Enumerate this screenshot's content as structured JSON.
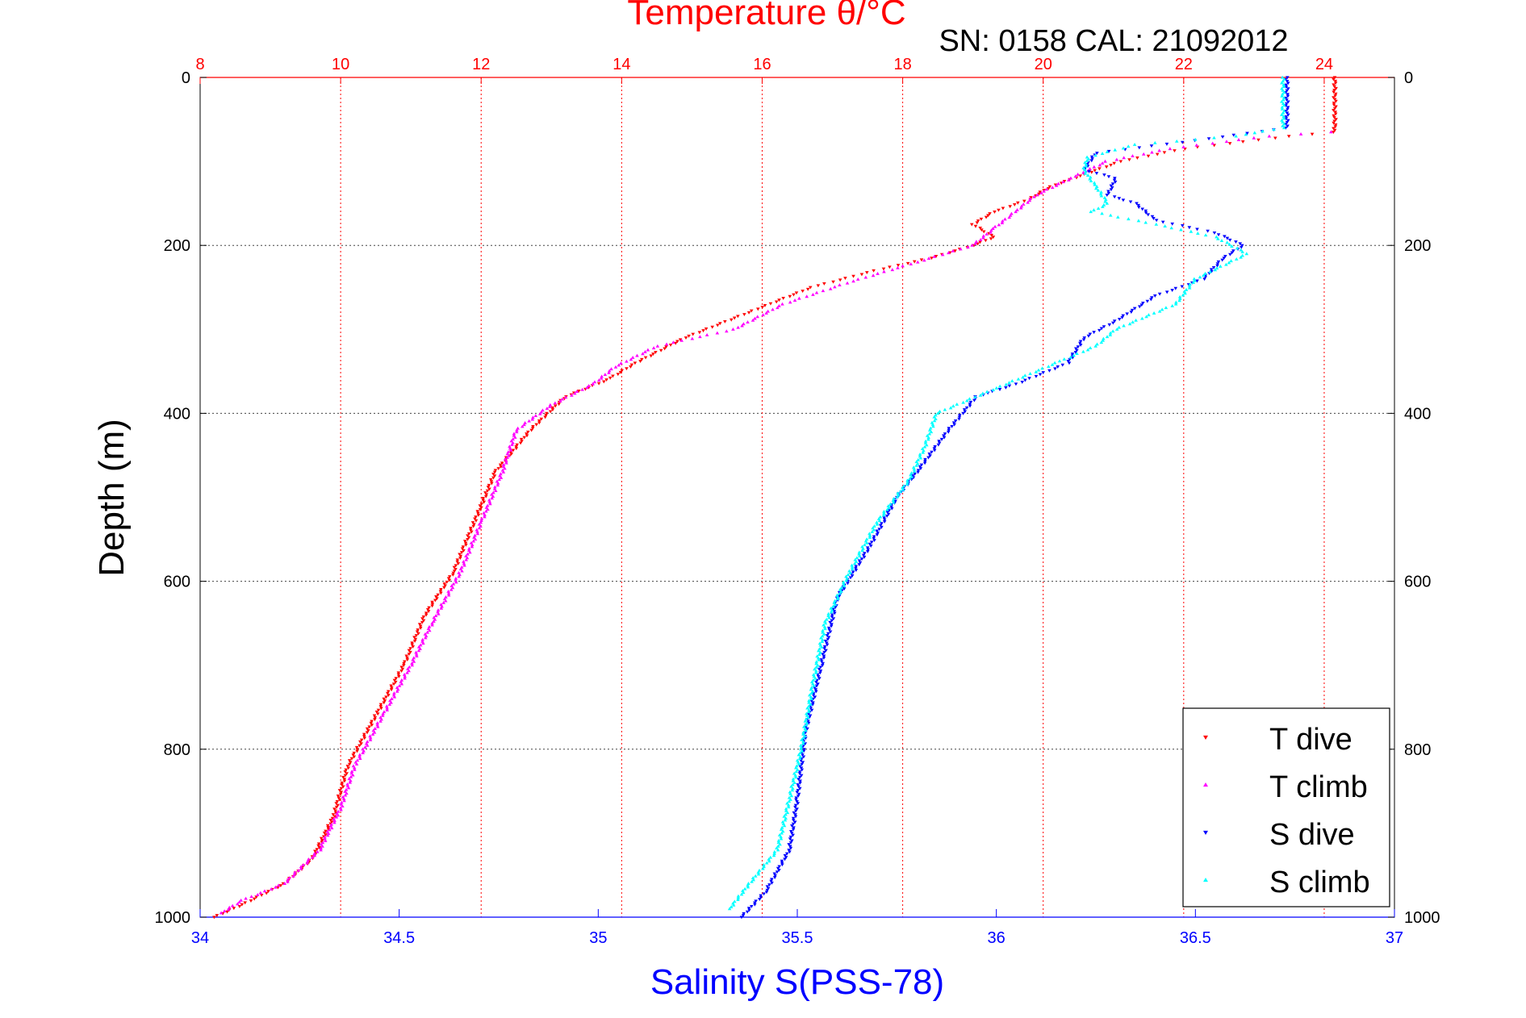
{
  "chart_data": {
    "type": "scatter",
    "title": "Temperature θ/°C",
    "subtitle": "SN: 0158  CAL: 21092012",
    "xlabel": "Salinity S(PSS-78)",
    "ylabel": "Depth (m)",
    "grid": true,
    "legend_position": "bottom-right",
    "axes": {
      "depth": {
        "range": [
          0,
          1000
        ],
        "ticks": [
          "0",
          "200",
          "400",
          "600",
          "800",
          "1000"
        ],
        "reversed": true
      },
      "temperature": {
        "range": [
          8,
          25
        ],
        "ticks": [
          "8",
          "10",
          "12",
          "14",
          "16",
          "18",
          "20",
          "22",
          "24"
        ],
        "color": "#ff0000"
      },
      "salinity": {
        "range": [
          34,
          37
        ],
        "ticks": [
          "34",
          "34.5",
          "35",
          "35.5",
          "36",
          "36.5",
          "37"
        ],
        "color": "#0000ff"
      }
    },
    "series": [
      {
        "name": "T dive",
        "axis": "temperature",
        "color": "#ff0000",
        "marker": "triangle-down",
        "points": [
          [
            24.15,
            0
          ],
          [
            24.15,
            65
          ],
          [
            23.5,
            70
          ],
          [
            22,
            85
          ],
          [
            21.1,
            100
          ],
          [
            20.6,
            115
          ],
          [
            20.1,
            130
          ],
          [
            19.8,
            145
          ],
          [
            19.3,
            160
          ],
          [
            19.0,
            175
          ],
          [
            19.3,
            190
          ],
          [
            19.0,
            200
          ],
          [
            18.4,
            215
          ],
          [
            17.6,
            230
          ],
          [
            16.7,
            250
          ],
          [
            15.8,
            280
          ],
          [
            14.9,
            310
          ],
          [
            14.2,
            340
          ],
          [
            13.8,
            360
          ],
          [
            13.2,
            380
          ],
          [
            12.7,
            420
          ],
          [
            12.2,
            470
          ],
          [
            11.9,
            530
          ],
          [
            11.6,
            590
          ],
          [
            11.2,
            640
          ],
          [
            10.9,
            700
          ],
          [
            10.5,
            760
          ],
          [
            10.1,
            820
          ],
          [
            9.9,
            880
          ],
          [
            9.6,
            930
          ],
          [
            9.2,
            960
          ],
          [
            8.6,
            985
          ],
          [
            8.2,
            1000
          ]
        ]
      },
      {
        "name": "T climb",
        "axis": "temperature",
        "color": "#ff00ff",
        "marker": "triangle-up",
        "points": [
          [
            24.1,
            65
          ],
          [
            23.2,
            70
          ],
          [
            21.8,
            85
          ],
          [
            20.9,
            100
          ],
          [
            20.4,
            120
          ],
          [
            19.9,
            140
          ],
          [
            19.6,
            160
          ],
          [
            19.3,
            180
          ],
          [
            19.0,
            200
          ],
          [
            18.2,
            220
          ],
          [
            17.2,
            245
          ],
          [
            16.3,
            270
          ],
          [
            15.6,
            300
          ],
          [
            14.5,
            320
          ],
          [
            13.9,
            345
          ],
          [
            13.6,
            365
          ],
          [
            13.0,
            390
          ],
          [
            12.5,
            420
          ],
          [
            12.3,
            470
          ],
          [
            12.0,
            530
          ],
          [
            11.7,
            590
          ],
          [
            11.3,
            650
          ],
          [
            11.0,
            700
          ],
          [
            10.6,
            760
          ],
          [
            10.2,
            820
          ],
          [
            10.0,
            870
          ],
          [
            9.7,
            920
          ],
          [
            9.2,
            960
          ],
          [
            8.6,
            980
          ],
          [
            8.3,
            995
          ]
        ]
      },
      {
        "name": "S dive",
        "axis": "salinity",
        "color": "#0000ff",
        "marker": "triangle-down",
        "points": [
          [
            36.73,
            0
          ],
          [
            36.73,
            60
          ],
          [
            36.5,
            75
          ],
          [
            36.25,
            90
          ],
          [
            36.22,
            110
          ],
          [
            36.3,
            120
          ],
          [
            36.28,
            140
          ],
          [
            36.35,
            150
          ],
          [
            36.4,
            170
          ],
          [
            36.55,
            185
          ],
          [
            36.62,
            200
          ],
          [
            36.57,
            215
          ],
          [
            36.52,
            240
          ],
          [
            36.4,
            260
          ],
          [
            36.3,
            290
          ],
          [
            36.22,
            310
          ],
          [
            36.18,
            340
          ],
          [
            36.05,
            365
          ],
          [
            35.95,
            380
          ],
          [
            35.88,
            420
          ],
          [
            35.8,
            470
          ],
          [
            35.75,
            500
          ],
          [
            35.68,
            560
          ],
          [
            35.6,
            620
          ],
          [
            35.56,
            700
          ],
          [
            35.52,
            780
          ],
          [
            35.5,
            860
          ],
          [
            35.48,
            920
          ],
          [
            35.42,
            970
          ],
          [
            35.36,
            1000
          ]
        ]
      },
      {
        "name": "S climb",
        "axis": "salinity",
        "color": "#00ffff",
        "marker": "triangle-up",
        "points": [
          [
            36.72,
            0
          ],
          [
            36.72,
            60
          ],
          [
            36.6,
            70
          ],
          [
            36.35,
            80
          ],
          [
            36.23,
            95
          ],
          [
            36.22,
            110
          ],
          [
            36.25,
            130
          ],
          [
            36.28,
            150
          ],
          [
            36.24,
            160
          ],
          [
            36.4,
            175
          ],
          [
            36.55,
            190
          ],
          [
            36.63,
            210
          ],
          [
            36.5,
            240
          ],
          [
            36.45,
            270
          ],
          [
            36.3,
            300
          ],
          [
            36.25,
            320
          ],
          [
            36.15,
            340
          ],
          [
            36.0,
            370
          ],
          [
            35.85,
            400
          ],
          [
            35.82,
            440
          ],
          [
            35.78,
            480
          ],
          [
            35.7,
            530
          ],
          [
            35.63,
            590
          ],
          [
            35.57,
            650
          ],
          [
            35.54,
            720
          ],
          [
            35.51,
            800
          ],
          [
            35.48,
            860
          ],
          [
            35.45,
            920
          ],
          [
            35.38,
            960
          ],
          [
            35.33,
            990
          ]
        ]
      }
    ]
  }
}
